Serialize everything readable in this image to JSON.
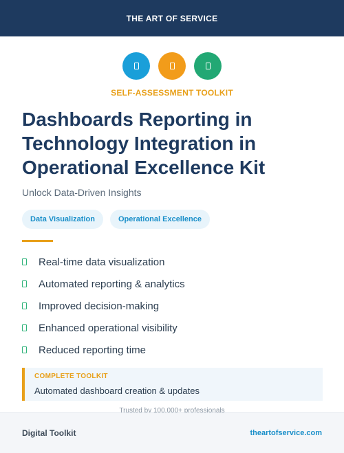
{
  "header": {
    "brand": "THE ART OF SERVICE"
  },
  "icons": [
    {
      "name": "document-icon",
      "color": "#1a9fd9"
    },
    {
      "name": "document-icon",
      "color": "#f29c1a"
    },
    {
      "name": "document-icon",
      "color": "#22a874"
    }
  ],
  "eyebrow": "SELF-ASSESSMENT TOOLKIT",
  "title": "Dashboards Reporting in Technology Integration in Operational Excellence Kit",
  "subtitle": "Unlock Data-Driven Insights",
  "tags": [
    "Data Visualization",
    "Operational Excellence"
  ],
  "features": [
    "Real-time data visualization",
    "Automated reporting & analytics",
    "Improved decision-making",
    "Enhanced operational visibility",
    "Reduced reporting time"
  ],
  "callout": {
    "label": "COMPLETE TOOLKIT",
    "text": "Automated dashboard creation & updates"
  },
  "trusted": "Trusted by 100,000+ professionals",
  "footer": {
    "left": "Digital Toolkit",
    "right": "theartofservice.com"
  },
  "colors": {
    "navy": "#1e3a5f",
    "accent": "#e8a01a",
    "link": "#1a8fc9",
    "check": "#2fb37a"
  }
}
